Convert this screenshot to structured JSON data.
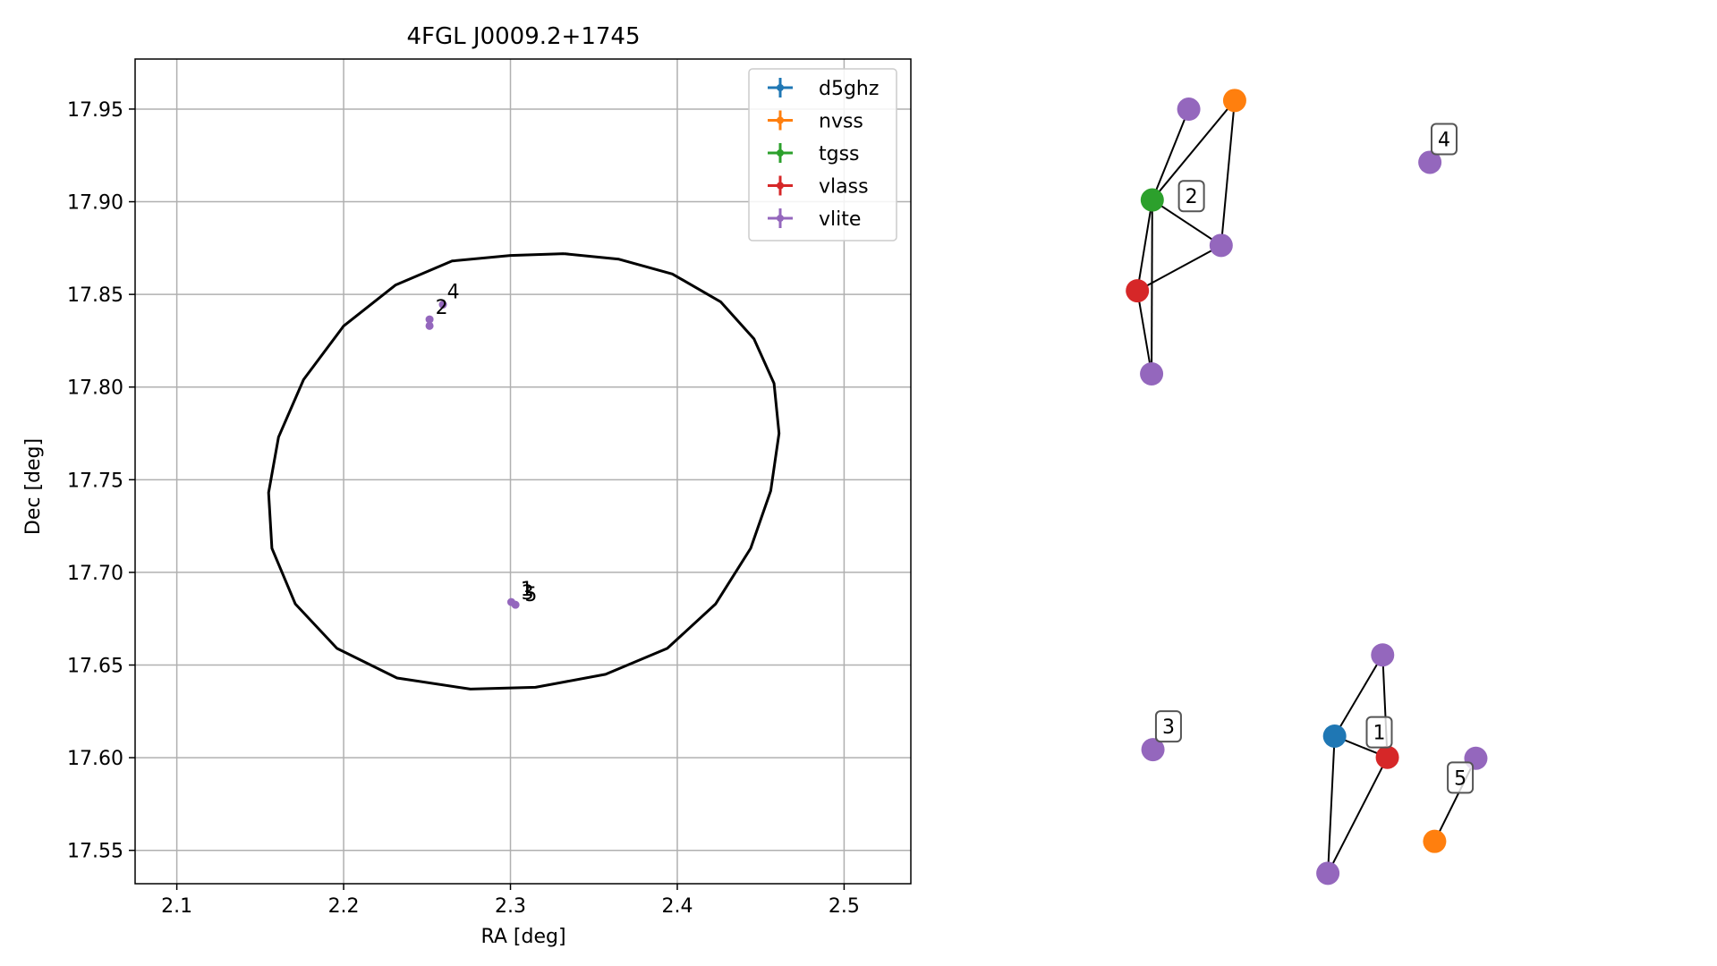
{
  "chart_data": [
    {
      "type": "scatter",
      "title": "4FGL J0009.2+1745",
      "xlabel": "RA [deg]",
      "ylabel": "Dec [deg]",
      "xlim": [
        2.075,
        2.54
      ],
      "ylim": [
        17.532,
        17.977
      ],
      "xticks": [
        2.1,
        2.2,
        2.3,
        2.4,
        2.5
      ],
      "yticks": [
        17.55,
        17.6,
        17.65,
        17.7,
        17.75,
        17.8,
        17.85,
        17.9,
        17.95
      ],
      "grid": true,
      "legend_position": "top-right",
      "legend": [
        {
          "name": "d5ghz",
          "color": "#1f77b4"
        },
        {
          "name": "nvss",
          "color": "#ff7f0e"
        },
        {
          "name": "tgss",
          "color": "#2ca02c"
        },
        {
          "name": "vlass",
          "color": "#d62728"
        },
        {
          "name": "vlite",
          "color": "#9467bd"
        }
      ],
      "ellipse": {
        "color": "#000000",
        "points": [
          [
            2.332,
            17.872
          ],
          [
            2.365,
            17.869
          ],
          [
            2.397,
            17.861
          ],
          [
            2.426,
            17.846
          ],
          [
            2.446,
            17.826
          ],
          [
            2.458,
            17.802
          ],
          [
            2.461,
            17.775
          ],
          [
            2.456,
            17.744
          ],
          [
            2.444,
            17.713
          ],
          [
            2.423,
            17.683
          ],
          [
            2.394,
            17.659
          ],
          [
            2.357,
            17.645
          ],
          [
            2.315,
            17.638
          ],
          [
            2.276,
            17.637
          ],
          [
            2.232,
            17.643
          ],
          [
            2.196,
            17.659
          ],
          [
            2.171,
            17.683
          ],
          [
            2.157,
            17.713
          ],
          [
            2.155,
            17.743
          ],
          [
            2.161,
            17.773
          ],
          [
            2.176,
            17.804
          ],
          [
            2.2,
            17.833
          ],
          [
            2.231,
            17.855
          ],
          [
            2.265,
            17.868
          ],
          [
            2.3,
            17.871
          ],
          [
            2.332,
            17.872
          ]
        ]
      },
      "sources": [
        {
          "ra": 2.2515,
          "dec": 17.8365,
          "color": "#9467bd"
        },
        {
          "ra": 2.2515,
          "dec": 17.833,
          "color": "#9467bd"
        },
        {
          "ra": 2.2595,
          "dec": 17.8445,
          "color": "#9467bd"
        },
        {
          "ra": 2.3005,
          "dec": 17.684,
          "color": "#9467bd"
        },
        {
          "ra": 2.303,
          "dec": 17.6825,
          "color": "#9467bd"
        }
      ],
      "annotations": [
        {
          "text": "4",
          "x": 2.262,
          "y": 17.848
        },
        {
          "text": "2",
          "x": 2.255,
          "y": 17.8395
        },
        {
          "text": "1",
          "x": 2.306,
          "y": 17.6875
        },
        {
          "text": "3",
          "x": 2.3065,
          "y": 17.6855
        },
        {
          "text": "5",
          "x": 2.3085,
          "y": 17.6845
        }
      ]
    },
    {
      "type": "network",
      "nodes": [
        {
          "id": "a1",
          "color": "#9467bd",
          "pos": [
            0.218,
            0.113
          ]
        },
        {
          "id": "a2",
          "color": "#ff7f0e",
          "pos": [
            0.286,
            0.104
          ]
        },
        {
          "id": "a3",
          "color": "#2ca02c",
          "pos": [
            0.164,
            0.207
          ]
        },
        {
          "id": "a4",
          "color": "#9467bd",
          "pos": [
            0.266,
            0.254
          ]
        },
        {
          "id": "a5",
          "color": "#d62728",
          "pos": [
            0.142,
            0.301
          ]
        },
        {
          "id": "a6",
          "color": "#9467bd",
          "pos": [
            0.163,
            0.387
          ]
        },
        {
          "id": "b1",
          "color": "#9467bd",
          "pos": [
            0.575,
            0.168
          ]
        },
        {
          "id": "c1",
          "color": "#9467bd",
          "pos": [
            0.165,
            0.776
          ]
        },
        {
          "id": "d1",
          "color": "#9467bd",
          "pos": [
            0.505,
            0.678
          ]
        },
        {
          "id": "d2",
          "color": "#1f77b4",
          "pos": [
            0.434,
            0.762
          ]
        },
        {
          "id": "d3",
          "color": "#d62728",
          "pos": [
            0.512,
            0.784
          ]
        },
        {
          "id": "d4",
          "color": "#9467bd",
          "pos": [
            0.424,
            0.904
          ]
        },
        {
          "id": "e1",
          "color": "#9467bd",
          "pos": [
            0.643,
            0.785
          ]
        },
        {
          "id": "e2",
          "color": "#ff7f0e",
          "pos": [
            0.582,
            0.871
          ]
        }
      ],
      "edges": [
        [
          "a1",
          "a3"
        ],
        [
          "a2",
          "a3"
        ],
        [
          "a2",
          "a4"
        ],
        [
          "a3",
          "a4"
        ],
        [
          "a3",
          "a5"
        ],
        [
          "a3",
          "a6"
        ],
        [
          "a5",
          "a4"
        ],
        [
          "a5",
          "a6"
        ],
        [
          "d1",
          "d2"
        ],
        [
          "d1",
          "d3"
        ],
        [
          "d2",
          "d3"
        ],
        [
          "d2",
          "d4"
        ],
        [
          "d3",
          "d4"
        ],
        [
          "e1",
          "e2"
        ]
      ],
      "labels": [
        {
          "text": "2",
          "pos": [
            0.222,
            0.203
          ]
        },
        {
          "text": "4",
          "pos": [
            0.596,
            0.144
          ]
        },
        {
          "text": "3",
          "pos": [
            0.188,
            0.752
          ]
        },
        {
          "text": "1",
          "pos": [
            0.5,
            0.758
          ]
        },
        {
          "text": "5",
          "pos": [
            0.62,
            0.805
          ]
        }
      ]
    }
  ]
}
